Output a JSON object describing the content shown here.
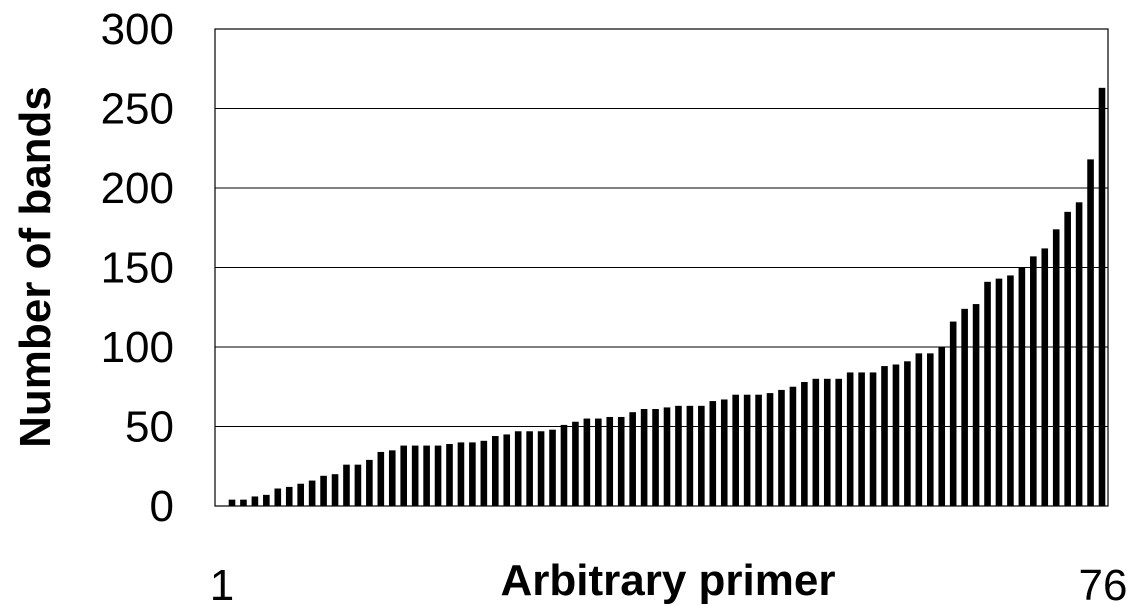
{
  "chart_data": {
    "type": "bar",
    "xlabel": "Arbitrary primer",
    "ylabel": "Number of bands",
    "x_tick_labels": [
      "1",
      "76"
    ],
    "y_ticks": [
      0,
      50,
      100,
      150,
      200,
      250,
      300
    ],
    "ylim": [
      0,
      300
    ],
    "grid": true,
    "legend": "none",
    "bar_color": "#000000",
    "values": [
      4,
      4,
      6,
      7,
      11,
      12,
      14,
      16,
      19,
      20,
      26,
      26,
      29,
      34,
      35,
      38,
      38,
      38,
      38,
      39,
      40,
      40,
      41,
      44,
      45,
      47,
      47,
      47,
      48,
      51,
      53,
      55,
      55,
      56,
      56,
      59,
      61,
      61,
      62,
      63,
      63,
      63,
      66,
      67,
      70,
      70,
      70,
      71,
      73,
      75,
      78,
      80,
      80,
      80,
      84,
      84,
      84,
      88,
      89,
      91,
      96,
      96,
      100,
      116,
      124,
      127,
      141,
      143,
      145,
      150,
      157,
      162,
      174,
      185,
      191,
      218,
      263
    ]
  }
}
